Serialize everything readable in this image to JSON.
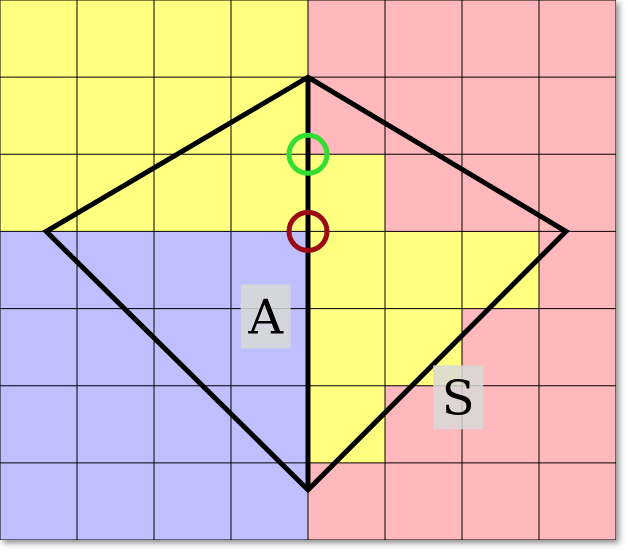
{
  "grid": {
    "cols": 8,
    "rows": 7
  },
  "colors": {
    "yellow": "#ffff80",
    "red": "#ffb8bb",
    "blue": "#bfbfff",
    "grid_line": "#000000",
    "shape_stroke": "#000000",
    "green_circle": "#33dd33",
    "darkred_circle": "#9b0a14",
    "label_box": "#d8d8d8"
  },
  "regions": {
    "yellow": [
      [
        0,
        0
      ],
      [
        1,
        0
      ],
      [
        2,
        0
      ],
      [
        3,
        0
      ],
      [
        0,
        1
      ],
      [
        1,
        1
      ],
      [
        2,
        1
      ],
      [
        3,
        1
      ],
      [
        0,
        2
      ],
      [
        1,
        2
      ],
      [
        2,
        2
      ],
      [
        3,
        2
      ],
      [
        4,
        2
      ],
      [
        4,
        3
      ],
      [
        5,
        3
      ],
      [
        6,
        3
      ],
      [
        4,
        4
      ],
      [
        5,
        4
      ],
      [
        4,
        5
      ]
    ],
    "red": [
      [
        4,
        0
      ],
      [
        5,
        0
      ],
      [
        6,
        0
      ],
      [
        7,
        0
      ],
      [
        4,
        1
      ],
      [
        5,
        1
      ],
      [
        6,
        1
      ],
      [
        7,
        1
      ],
      [
        5,
        2
      ],
      [
        6,
        2
      ],
      [
        7,
        2
      ],
      [
        7,
        3
      ],
      [
        6,
        4
      ],
      [
        7,
        4
      ],
      [
        5,
        5
      ],
      [
        6,
        5
      ],
      [
        7,
        5
      ],
      [
        4,
        6
      ],
      [
        5,
        6
      ],
      [
        6,
        6
      ],
      [
        7,
        6
      ]
    ],
    "blue": [
      [
        0,
        3
      ],
      [
        1,
        3
      ],
      [
        2,
        3
      ],
      [
        3,
        3
      ],
      [
        0,
        4
      ],
      [
        1,
        4
      ],
      [
        2,
        4
      ],
      [
        3,
        4
      ],
      [
        0,
        5
      ],
      [
        1,
        5
      ],
      [
        2,
        5
      ],
      [
        3,
        5
      ],
      [
        0,
        6
      ],
      [
        1,
        6
      ],
      [
        2,
        6
      ],
      [
        3,
        6
      ]
    ]
  },
  "shape": {
    "polygon": [
      [
        4,
        1
      ],
      [
        7.35,
        3
      ],
      [
        4,
        6.35
      ],
      [
        0.6,
        3
      ]
    ],
    "divider": [
      [
        4,
        1
      ],
      [
        4,
        6.35
      ]
    ]
  },
  "markers": [
    {
      "name": "green-circle",
      "center": [
        4,
        2
      ],
      "color": "green"
    },
    {
      "name": "darkred-circle",
      "center": [
        4,
        3
      ],
      "color": "darkred"
    }
  ],
  "labels": [
    {
      "text": "A",
      "name": "label-a",
      "cell": [
        3.45,
        4.1
      ]
    },
    {
      "text": "S",
      "name": "label-s",
      "cell": [
        5.95,
        5.15
      ]
    }
  ]
}
